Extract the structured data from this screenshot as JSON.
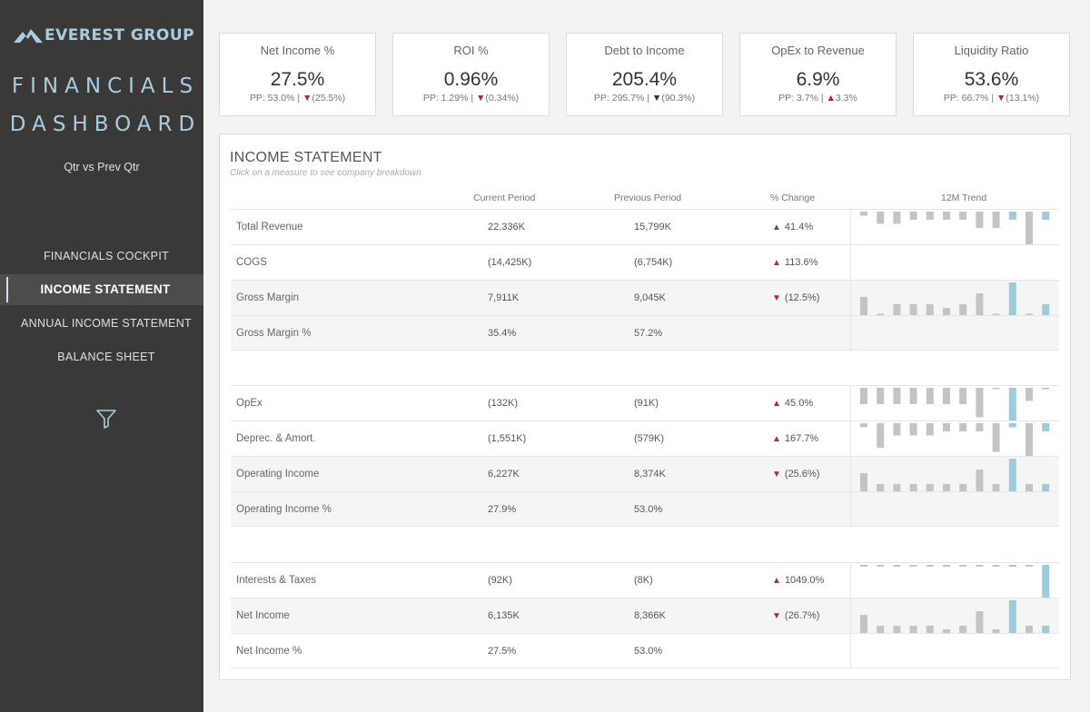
{
  "brand": {
    "logo_text": "EVEREST GROUP",
    "accent": "#a8cde0"
  },
  "sidebar": {
    "title_line1": "FINANCIALS",
    "title_line2": "DASHBOARD",
    "subtitle": "Qtr vs Prev Qtr",
    "nav": [
      {
        "label": "FINANCIALS COCKPIT",
        "active": false
      },
      {
        "label": "INCOME STATEMENT",
        "active": true
      },
      {
        "label": "ANNUAL INCOME STATEMENT",
        "active": false
      },
      {
        "label": "BALANCE SHEET",
        "active": false
      }
    ],
    "filter_icon": "filter-icon"
  },
  "kpis": [
    {
      "title": "Net Income %",
      "value": "27.5%",
      "pp": "PP: 53.0%",
      "change": "(25.5%)",
      "dir": "down",
      "color": "#b32637"
    },
    {
      "title": "ROI %",
      "value": "0.96%",
      "pp": "PP: 1.29%",
      "change": "(0.34%)",
      "dir": "down",
      "color": "#b32637"
    },
    {
      "title": "Debt to Income",
      "value": "205.4%",
      "pp": "PP: 295.7%",
      "change": "(90.3%)",
      "dir": "down",
      "color": "#333333"
    },
    {
      "title": "OpEx to Revenue",
      "value": "6.9%",
      "pp": "PP: 3.7%",
      "change": "3.3%",
      "dir": "up",
      "color": "#b32637"
    },
    {
      "title": "Liquidity Ratio",
      "value": "53.6%",
      "pp": "PP: 66.7%",
      "change": "(13.1%)",
      "dir": "down",
      "color": "#b32637"
    }
  ],
  "income": {
    "title": "INCOME STATEMENT",
    "hint": "Click on a measure to see company breakdown",
    "columns": [
      "Current Period",
      "Previous Period",
      "% Change",
      "12M Trend"
    ],
    "rows": [
      {
        "label": "Total Revenue",
        "current": "22,336K",
        "previous": "15,799K",
        "change": "41.4%",
        "dir": "up",
        "color": "#555555",
        "trend": [
          1,
          -3,
          3,
          2,
          2,
          2,
          2,
          -4,
          -4,
          2,
          8,
          -2
        ],
        "baseline": "top"
      },
      {
        "label": "COGS",
        "current": "(14,425K)",
        "previous": "(6,754K)",
        "change": "113.6%",
        "dir": "up",
        "color": "#b32637"
      },
      {
        "label": "Gross Margin",
        "current": "7,911K",
        "previous": "9,045K",
        "change": "(12.5%)",
        "dir": "down",
        "color": "#b32637",
        "trend": [
          5,
          0.3,
          3,
          3,
          3,
          2,
          3,
          6,
          0.3,
          9,
          0.3,
          3
        ],
        "baseline": "bottom"
      },
      {
        "label": "Gross Margin %",
        "current": "35.4%",
        "previous": "57.2%",
        "change": "",
        "dir": "",
        "color": "#555555"
      },
      {
        "label": "OpEx",
        "current": "(132K)",
        "previous": "(91K)",
        "change": "45.0%",
        "dir": "up",
        "color": "#b32637",
        "trend": [
          5,
          5,
          5,
          5,
          5,
          5,
          5,
          9,
          0,
          10,
          4,
          0
        ],
        "baseline": "top"
      },
      {
        "label": "Deprec. & Amort.",
        "current": "(1,551K)",
        "previous": "(579K)",
        "change": "167.7%",
        "dir": "up",
        "color": "#b32637",
        "trend": [
          1,
          6,
          3,
          3,
          3,
          2,
          2,
          2,
          7,
          1,
          8,
          2
        ],
        "baseline": "mid"
      },
      {
        "label": "Operating Income",
        "current": "6,227K",
        "previous": "8,374K",
        "change": "(25.6%)",
        "dir": "down",
        "color": "#b32637",
        "trend": [
          5,
          2,
          2,
          2,
          2,
          2,
          2,
          6,
          2,
          9,
          2,
          2
        ],
        "baseline": "bottom"
      },
      {
        "label": "Operating Income %",
        "current": "27.9%",
        "previous": "53.0%",
        "change": "",
        "dir": "",
        "color": "#555555"
      },
      {
        "label": "Interests & Taxes",
        "current": "(92K)",
        "previous": "(8K)",
        "change": "1049.0%",
        "dir": "up",
        "color": "#b32637",
        "trend": [
          0.5,
          0.5,
          0.5,
          0.5,
          0.5,
          0.5,
          0.5,
          0.5,
          0.5,
          0.5,
          0.5,
          9
        ],
        "baseline": "top"
      },
      {
        "label": "Net Income",
        "current": "6,135K",
        "previous": "8,366K",
        "change": "(26.7%)",
        "dir": "down",
        "color": "#b32637",
        "trend": [
          5,
          2,
          2,
          2,
          2,
          1,
          2,
          6,
          1,
          9,
          2,
          2
        ],
        "baseline": "bottom"
      },
      {
        "label": "Net Income %",
        "current": "27.5%",
        "previous": "53.0%",
        "change": "",
        "dir": "",
        "color": "#555555"
      }
    ]
  },
  "colors": {
    "bar_grey": "#c4c4c4",
    "bar_blue": "#9ecadb",
    "negative": "#b32637"
  }
}
